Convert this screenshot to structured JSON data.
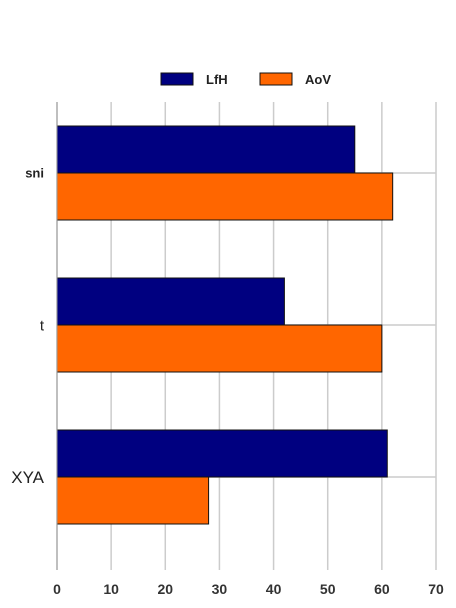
{
  "chart_data": {
    "type": "bar",
    "orientation": "horizontal",
    "title": "",
    "xlabel": "",
    "ylabel": "",
    "categories": [
      "sni",
      "t",
      "XYA"
    ],
    "series": [
      {
        "name": "LfH",
        "color": "#000080",
        "values": [
          55,
          42,
          61
        ]
      },
      {
        "name": "AoV",
        "color": "#ff6600",
        "values": [
          62,
          60,
          28
        ]
      }
    ],
    "xlim": [
      0,
      70
    ],
    "xticks": [
      "0",
      "10",
      "20",
      "30",
      "40",
      "50",
      "60",
      "70"
    ],
    "grid": true,
    "legend_position": "top-center"
  }
}
